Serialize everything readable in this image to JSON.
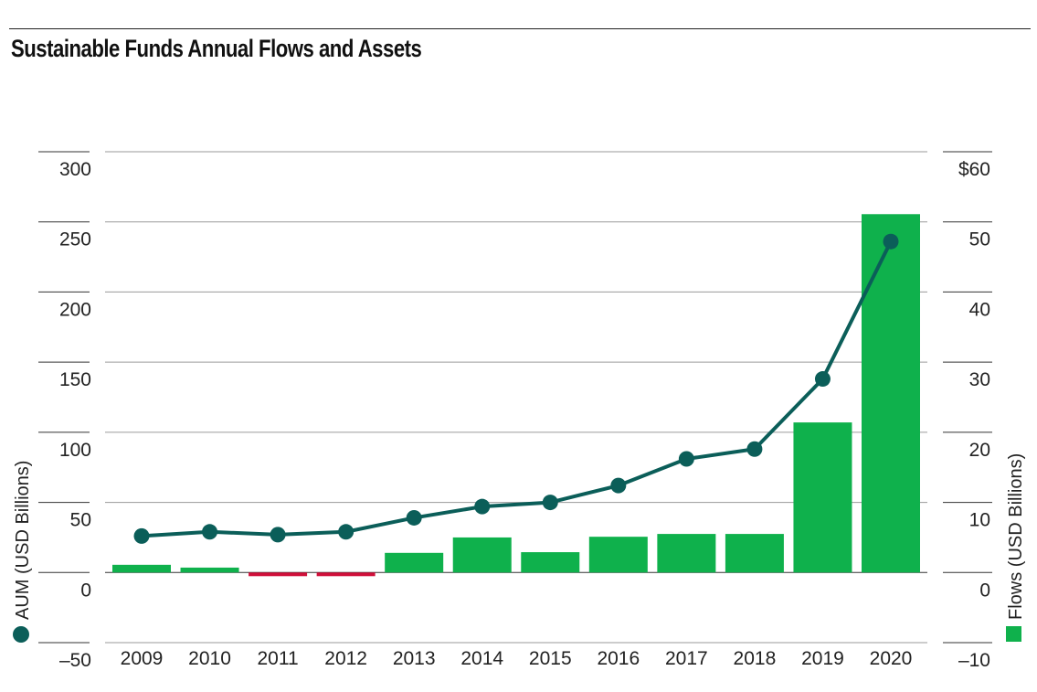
{
  "title": "Sustainable Funds Annual Flows and Assets",
  "chart_data": {
    "type": "bar",
    "title": "Sustainable Funds Annual Flows and Assets",
    "categories": [
      "2009",
      "2010",
      "2011",
      "2012",
      "2013",
      "2014",
      "2015",
      "2016",
      "2017",
      "2018",
      "2019",
      "2020"
    ],
    "left_axis": {
      "label": "AUM (USD Billions)",
      "ylim": [
        -50,
        300
      ],
      "ticks": [
        -50,
        0,
        50,
        100,
        150,
        200,
        250,
        300
      ],
      "tick_labels": [
        "–50",
        "0",
        "50",
        "100",
        "150",
        "200",
        "250",
        "300"
      ]
    },
    "right_axis": {
      "label": "Flows (USD Billions)",
      "ylim": [
        -10,
        60
      ],
      "ticks": [
        -10,
        0,
        10,
        20,
        30,
        40,
        50,
        60
      ],
      "tick_labels": [
        "–10",
        "0",
        "10",
        "20",
        "30",
        "40",
        "50",
        "$60"
      ]
    },
    "series": [
      {
        "name": "Flows (USD Billions)",
        "type": "bar",
        "axis": "right",
        "values": [
          1.1,
          0.7,
          -0.4,
          -0.4,
          2.8,
          5.0,
          2.9,
          5.1,
          5.5,
          5.5,
          21.4,
          51.1
        ]
      },
      {
        "name": "AUM (USD Billions)",
        "type": "line",
        "axis": "left",
        "values": [
          26,
          29,
          27,
          29,
          39,
          47,
          50,
          62,
          81,
          88,
          138,
          236
        ]
      }
    ],
    "colors": {
      "flow_positive": "#0fb14c",
      "flow_negative": "#d0103a",
      "aum_line": "#0b5e59",
      "grid": "#9a9a9a",
      "zero_line": "#333333"
    },
    "grid": true
  }
}
